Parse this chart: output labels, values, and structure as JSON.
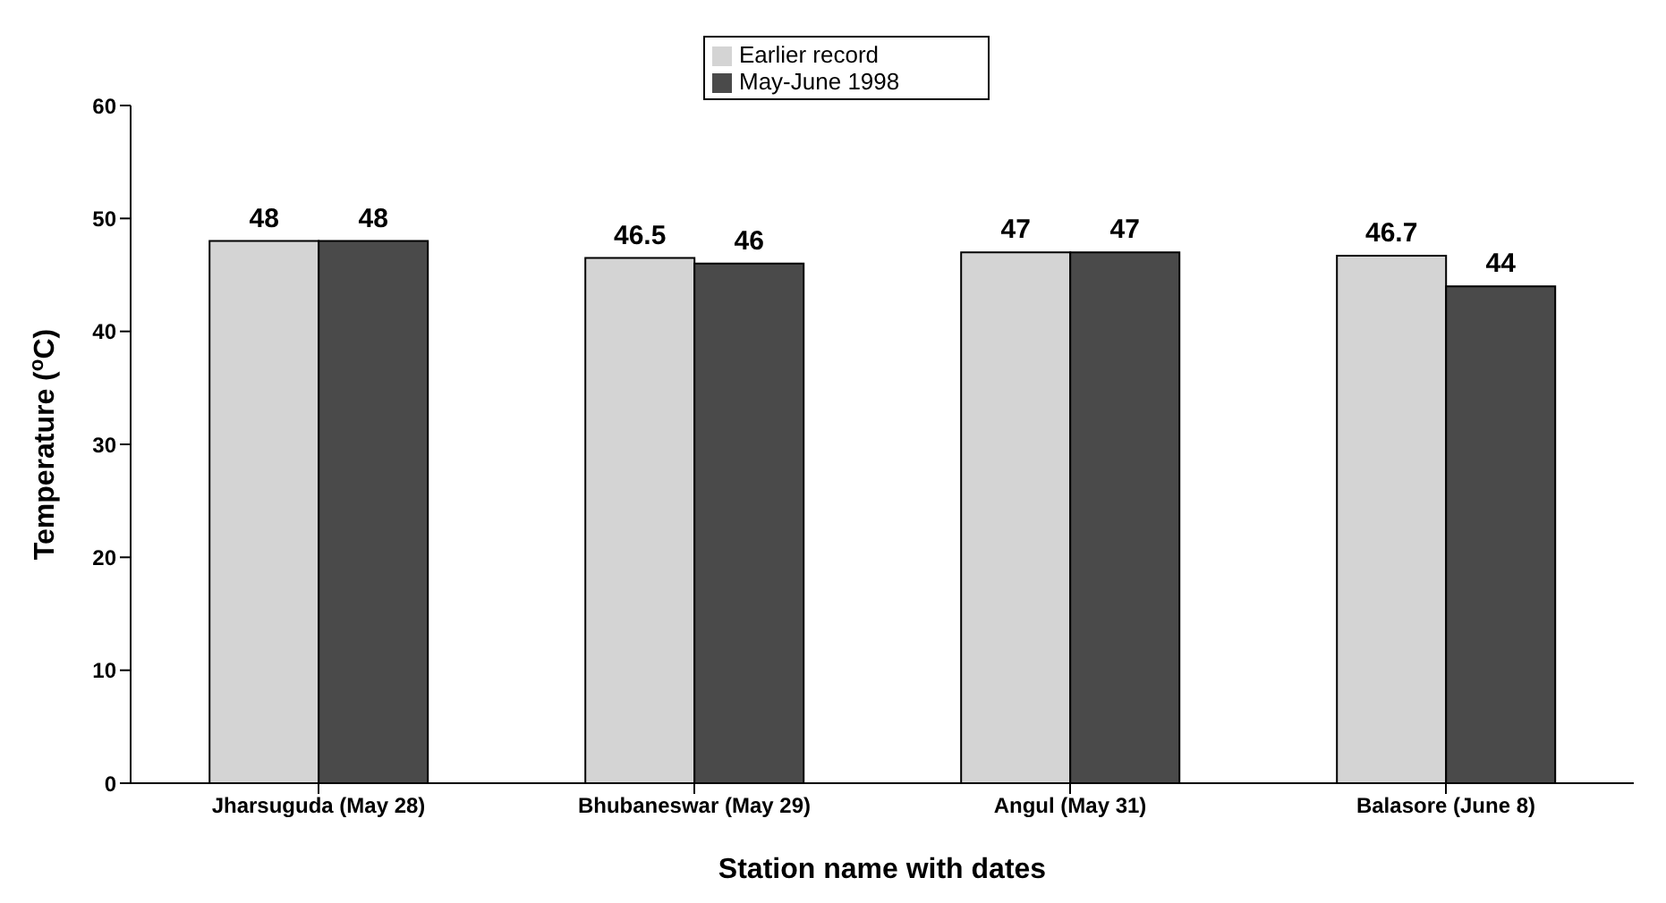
{
  "chart_data": {
    "type": "bar",
    "xlabel": "Station name with dates",
    "ylabel": "Temperature ($^{o}$C)",
    "categories": [
      "Jharsuguda (May 28)",
      "Bhubaneswar (May 29)",
      "Angul (May 31)",
      "Balasore (June 8)"
    ],
    "series": [
      {
        "name": "Earlier record",
        "color": "#d4d4d4",
        "values": [
          48,
          46.5,
          47,
          46.7
        ]
      },
      {
        "name": "May-June 1998",
        "color": "#4a4a4a",
        "values": [
          48,
          46,
          47,
          44
        ]
      }
    ],
    "ylim": [
      0,
      60
    ],
    "yticks": [
      0,
      10,
      20,
      30,
      40,
      50,
      60
    ],
    "data_labels": true,
    "legend": "top",
    "grid": false
  }
}
